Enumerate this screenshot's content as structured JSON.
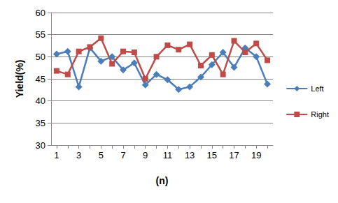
{
  "chart_data": {
    "type": "line",
    "x_label": "(n)",
    "y_label": "Yield(%)",
    "categories": [
      "1",
      null,
      "3",
      null,
      "5",
      null,
      "7",
      null,
      "9",
      null,
      "11",
      null,
      "13",
      null,
      "15",
      null,
      "17",
      null,
      "19",
      null
    ],
    "series": [
      {
        "name": "Left",
        "color": "#4a7ebb",
        "marker": "diamond",
        "values": [
          50.6,
          51.2,
          43.2,
          52.0,
          49.0,
          50.0,
          47.0,
          48.6,
          43.6,
          46.0,
          44.8,
          42.6,
          43.2,
          45.4,
          48.2,
          51.0,
          47.6,
          52.0,
          50.0,
          43.8
        ]
      },
      {
        "name": "Right",
        "color": "#be4b48",
        "marker": "square",
        "values": [
          46.8,
          46.0,
          51.2,
          52.2,
          54.2,
          48.4,
          51.2,
          51.0,
          45.0,
          50.0,
          52.6,
          51.6,
          52.8,
          48.0,
          50.4,
          46.0,
          53.6,
          51.0,
          53.0,
          49.2
        ]
      }
    ],
    "ylim": [
      30,
      60
    ],
    "yticks": [
      30,
      35,
      40,
      45,
      50,
      55,
      60
    ],
    "grid": true,
    "legend": "right"
  }
}
